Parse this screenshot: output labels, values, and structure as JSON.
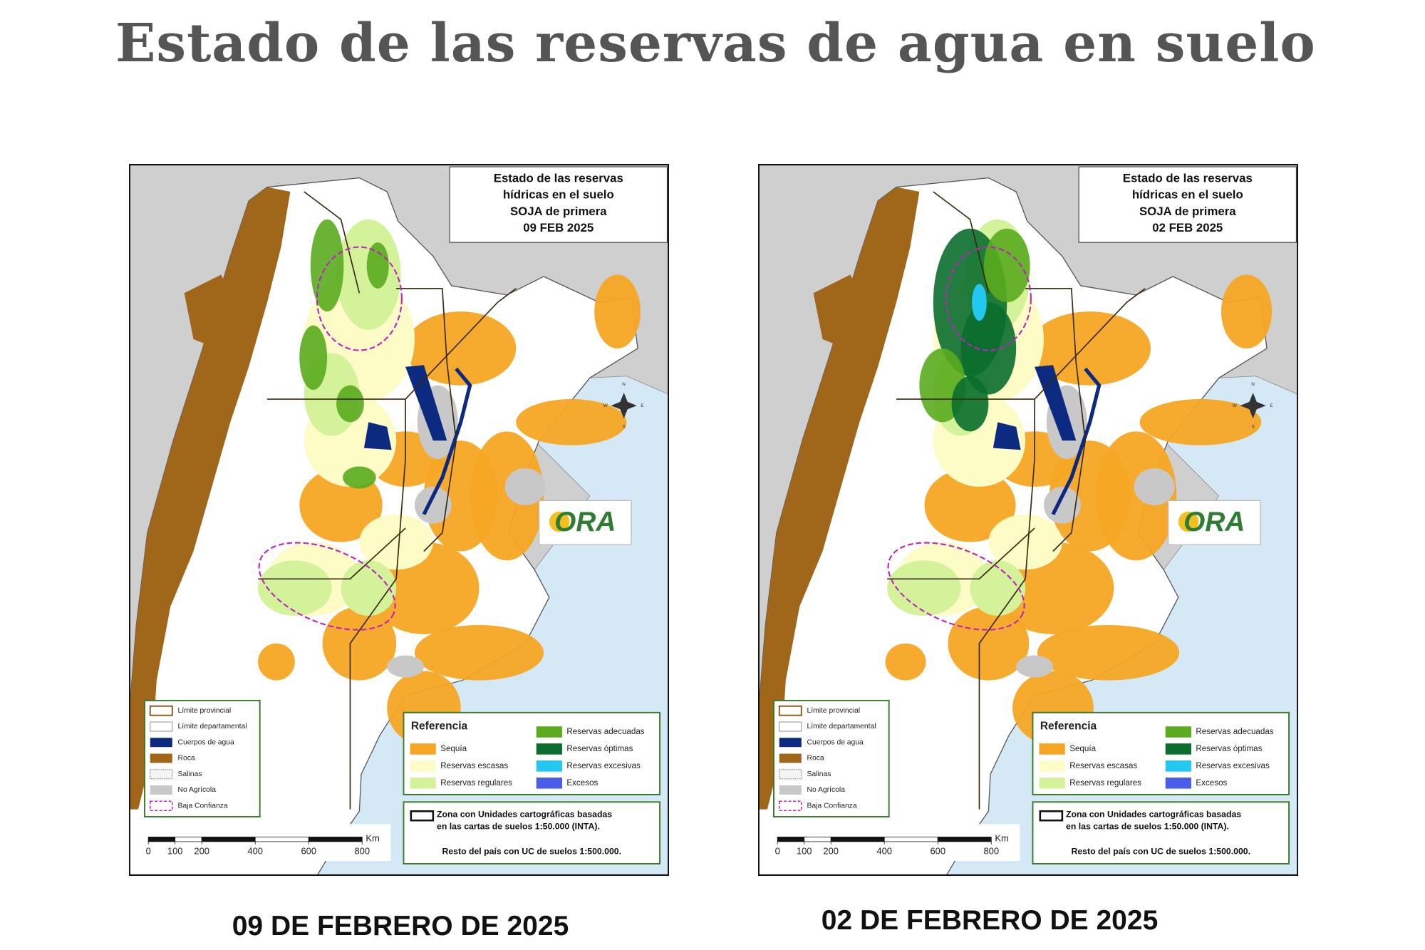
{
  "header": {
    "title": "Estado de las reservas de agua en suelo"
  },
  "maps": [
    {
      "info": [
        "Estado de las reservas",
        "hídricas en el suelo",
        "SOJA de primera",
        "09 FEB 2025"
      ],
      "legend": [
        "Límite provincial",
        "Límite departamental",
        "Cuerpos de agua",
        "Roca",
        "Salinas",
        "No Agrícola",
        "Baja Confianza"
      ],
      "reference": {
        "title": "Referencia",
        "items": [
          "Sequía",
          "Reservas escasas",
          "Reservas regulares",
          "Reservas adecuadas",
          "Reservas óptimas",
          "Reservas excesivas",
          "Excesos"
        ]
      },
      "zone": [
        "Zona con Unidades cartográficas basadas",
        "en las cartas de suelos 1:50.000 (INTA).",
        "Resto del país con UC de suelos 1:500.000."
      ],
      "scale": {
        "unit": "Km",
        "ticks": [
          0,
          100,
          200,
          400,
          600,
          800
        ]
      },
      "compass": [
        "N",
        "S",
        "W",
        "E"
      ],
      "logo": "ORA",
      "caption": "09 DE FEBRERO DE 2025"
    },
    {
      "info": [
        "Estado de las reservas",
        "hídricas en el suelo",
        "SOJA de primera",
        "02 FEB 2025"
      ],
      "legend": [
        "Límite provincial",
        "Límite departamental",
        "Cuerpos de agua",
        "Roca",
        "Salinas",
        "No Agrícola",
        "Baja Confianza"
      ],
      "reference": {
        "title": "Referencia",
        "items": [
          "Sequía",
          "Reservas escasas",
          "Reservas regulares",
          "Reservas adecuadas",
          "Reservas óptimas",
          "Reservas excesivas",
          "Excesos"
        ]
      },
      "zone": [
        "Zona con Unidades cartográficas basadas",
        "en las cartas de suelos 1:50.000 (INTA).",
        "Resto del país con UC de suelos 1:500.000."
      ],
      "scale": {
        "unit": "Km",
        "ticks": [
          0,
          100,
          200,
          400,
          600,
          800
        ]
      },
      "compass": [
        "N",
        "S",
        "W",
        "E"
      ],
      "logo": "ORA",
      "caption": "02 DE FEBRERO DE 2025"
    }
  ]
}
